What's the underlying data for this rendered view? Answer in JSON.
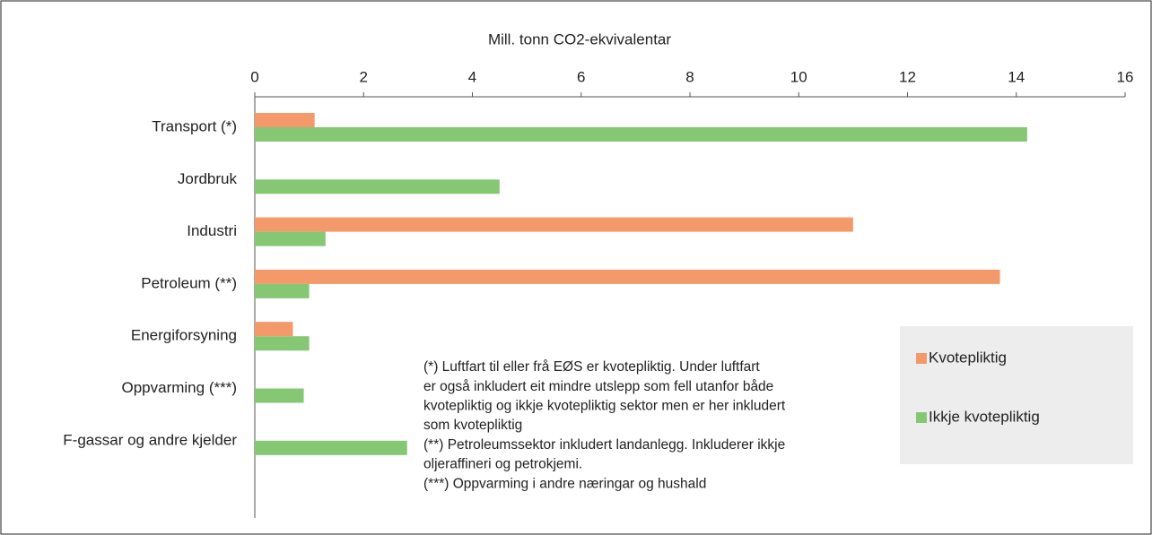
{
  "chart_data": {
    "type": "bar",
    "orientation": "horizontal",
    "xlabel": "Mill. tonn CO2-ekvivalentar",
    "categories": [
      "Transport (*)",
      "Jordbruk",
      "Industri",
      "Petroleum (**)",
      "Energiforsyning",
      "Oppvarming (***)",
      "F-gassar og andre kjelder"
    ],
    "series": [
      {
        "name": "Kvotepliktig",
        "color": "#f4996a",
        "values": [
          1.1,
          null,
          11.0,
          13.7,
          0.7,
          null,
          null
        ]
      },
      {
        "name": "Ikkje kvotepliktig",
        "color": "#86c774",
        "values": [
          14.2,
          4.5,
          1.3,
          1.0,
          1.0,
          0.9,
          2.8
        ]
      }
    ],
    "xlim": [
      0,
      16
    ],
    "xticks": [
      0,
      2,
      4,
      6,
      8,
      10,
      12,
      14,
      16
    ],
    "grid": false,
    "legend": "right",
    "annotations": [
      "(*)  Luftfart til eller frå EØS er kvotepliktig. Under luftfart",
      "er også inkludert eit mindre utslepp som fell utanfor både",
      "kvotepliktig og ikkje kvotepliktig sektor men er her inkludert",
      "som kvotepliktig",
      "(**) Petroleumssektor inkludert landanlegg. Inkluderer ikkje",
      "oljeraffineri og petrokjemi.",
      "(***) Oppvarming i andre næringar og hushald"
    ]
  }
}
